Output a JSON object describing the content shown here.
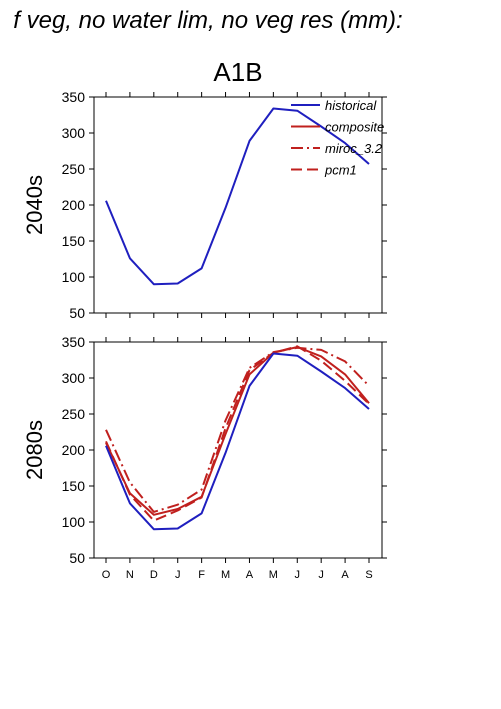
{
  "page": {
    "title": "f veg, no water lim, no veg res (mm):",
    "scenario": "A1B"
  },
  "colors": {
    "historical": "#1f1fbf",
    "projection": "#c0201e"
  },
  "legend": {
    "placement": "top-right",
    "entries": [
      {
        "label": "historical",
        "style": "solid",
        "color": "#1f1fbf"
      },
      {
        "label": "composite",
        "style": "solid",
        "color": "#c0201e"
      },
      {
        "label": "miroc_3.2",
        "style": "dashdot",
        "color": "#c0201e"
      },
      {
        "label": "pcm1",
        "style": "dashed",
        "color": "#c0201e"
      }
    ]
  },
  "chart_data": [
    {
      "type": "line",
      "panel_label": "2040s",
      "categories": [
        "O",
        "N",
        "D",
        "J",
        "F",
        "M",
        "A",
        "M",
        "J",
        "J",
        "A",
        "S"
      ],
      "ylim": [
        50,
        350
      ],
      "yticks": [
        50,
        100,
        150,
        200,
        250,
        300,
        350
      ],
      "series": [
        {
          "name": "historical",
          "style": "solid",
          "color": "#1f1fbf",
          "values": [
            206,
            126,
            90,
            91,
            112,
            196,
            289,
            334,
            331,
            309,
            286,
            257
          ]
        }
      ]
    },
    {
      "type": "line",
      "panel_label": "2080s",
      "categories": [
        "O",
        "N",
        "D",
        "J",
        "F",
        "M",
        "A",
        "M",
        "J",
        "J",
        "A",
        "S"
      ],
      "ylim": [
        50,
        350
      ],
      "yticks": [
        50,
        100,
        150,
        200,
        250,
        300,
        350
      ],
      "series": [
        {
          "name": "historical",
          "style": "solid",
          "color": "#1f1fbf",
          "values": [
            206,
            126,
            90,
            91,
            112,
            196,
            289,
            334,
            331,
            309,
            286,
            257
          ]
        },
        {
          "name": "composite",
          "style": "solid",
          "color": "#c0201e",
          "values": [
            210,
            140,
            110,
            118,
            135,
            222,
            305,
            335,
            343,
            330,
            305,
            265
          ]
        },
        {
          "name": "miroc_3.2",
          "style": "dashdot",
          "color": "#c0201e",
          "values": [
            228,
            155,
            114,
            124,
            145,
            241,
            314,
            336,
            342,
            339,
            323,
            289
          ]
        },
        {
          "name": "pcm1",
          "style": "dashed",
          "color": "#c0201e",
          "values": [
            212,
            138,
            102,
            116,
            134,
            230,
            311,
            335,
            344,
            324,
            296,
            264
          ]
        }
      ]
    }
  ]
}
